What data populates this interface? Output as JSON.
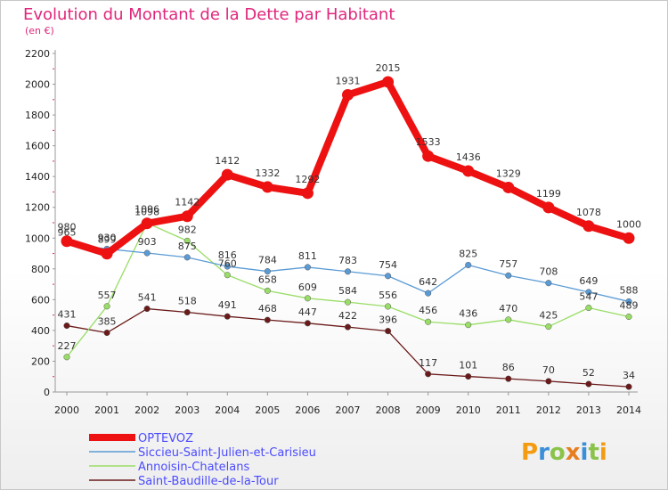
{
  "chart_data": {
    "type": "line",
    "title": "Evolution du Montant de la Dette par Habitant",
    "subtitle": "(en €)",
    "x": [
      2000,
      2001,
      2002,
      2003,
      2004,
      2005,
      2006,
      2007,
      2008,
      2009,
      2010,
      2011,
      2012,
      2013,
      2014
    ],
    "y_ticks": [
      0,
      200,
      400,
      600,
      800,
      1000,
      1200,
      1400,
      1600,
      1800,
      2000,
      2200
    ],
    "ylim": [
      0,
      2200
    ],
    "legend_position": "bottom-left",
    "grid": false,
    "series": [
      {
        "name": "OPTEVOZ",
        "color": "#ee1111",
        "values": [
          980,
          899,
          1096,
          1142,
          1412,
          1332,
          1292,
          1931,
          2015,
          1533,
          1436,
          1329,
          1199,
          1078,
          1000
        ]
      },
      {
        "name": "Siccieu-Saint-Julien-et-Carisieu",
        "color": "#5b9bd5",
        "values": [
          965,
          930,
          903,
          875,
          816,
          784,
          811,
          783,
          754,
          642,
          825,
          757,
          708,
          649,
          588
        ]
      },
      {
        "name": "Annoisin-Chatelans",
        "color": "#99dd66",
        "values": [
          227,
          557,
          1098,
          982,
          760,
          658,
          609,
          584,
          556,
          456,
          436,
          470,
          425,
          547,
          489
        ]
      },
      {
        "name": "Saint-Baudille-de-la-Tour",
        "color": "#6b1a1a",
        "values": [
          431,
          385,
          541,
          518,
          491,
          468,
          447,
          422,
          396,
          117,
          101,
          86,
          70,
          52,
          34
        ]
      }
    ]
  },
  "logo": {
    "text": "Proxiti"
  }
}
